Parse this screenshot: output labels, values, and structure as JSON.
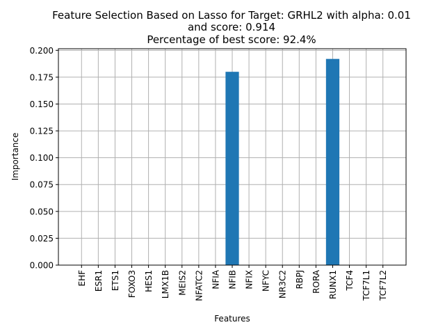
{
  "chart_data": {
    "type": "bar",
    "title_lines": [
      "Feature Selection Based on Lasso for Target: GRHL2 with alpha: 0.01",
      "and score: 0.914",
      "Percentage of best score: 92.4%"
    ],
    "xlabel": "Features",
    "ylabel": "Importance",
    "categories": [
      "EHF",
      "ESR1",
      "ETS1",
      "FOXO3",
      "HES1",
      "LMX1B",
      "MEIS2",
      "NFATC2",
      "NFIA",
      "NFIB",
      "NFIX",
      "NFYC",
      "NR3C2",
      "RBPJ",
      "RORA",
      "RUNX1",
      "TCF4",
      "TCF7L1",
      "TCF7L2"
    ],
    "values": [
      0,
      0,
      0,
      0,
      0,
      0,
      0,
      0,
      0,
      0.18,
      0,
      0,
      0,
      0,
      0,
      0.192,
      0,
      0,
      0
    ],
    "ylim": [
      0,
      0.2015
    ],
    "yticks": [
      "0.000",
      "0.025",
      "0.050",
      "0.075",
      "0.100",
      "0.125",
      "0.150",
      "0.175",
      "0.200"
    ],
    "grid": true,
    "bar_color": "#1f77b4",
    "grid_color": "#b0b0b0"
  }
}
